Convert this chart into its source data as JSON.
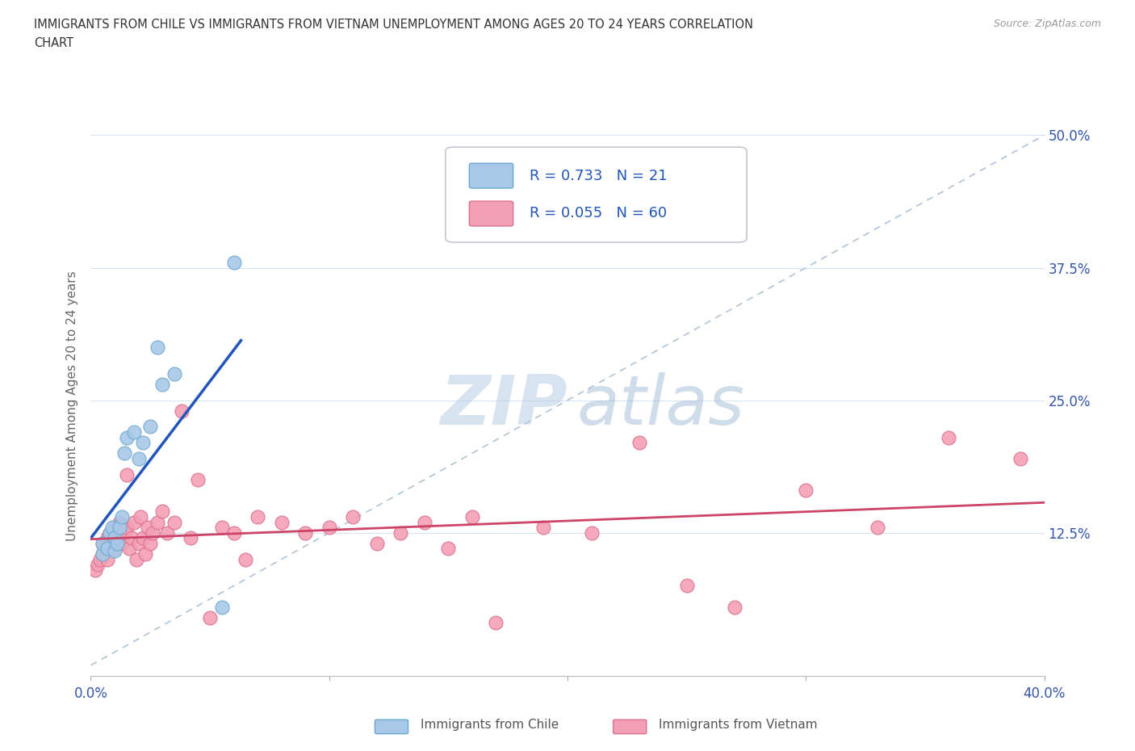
{
  "title": "IMMIGRANTS FROM CHILE VS IMMIGRANTS FROM VIETNAM UNEMPLOYMENT AMONG AGES 20 TO 24 YEARS CORRELATION\nCHART",
  "source": "Source: ZipAtlas.com",
  "ylabel": "Unemployment Among Ages 20 to 24 years",
  "xlim": [
    0.0,
    0.4
  ],
  "ylim": [
    -0.01,
    0.5
  ],
  "xticks": [
    0.0,
    0.1,
    0.2,
    0.3,
    0.4
  ],
  "yticks": [
    0.0,
    0.125,
    0.25,
    0.375,
    0.5
  ],
  "xtick_labels_display": [
    "0.0%",
    "",
    "",
    "",
    "40.0%"
  ],
  "ytick_labels": [
    "",
    "12.5%",
    "25.0%",
    "37.5%",
    "50.0%"
  ],
  "chile_color": "#a8c8e8",
  "chile_edge": "#6aa8d0",
  "vietnam_color": "#f4a0b4",
  "vietnam_edge": "#d87090",
  "chile_line_color": "#2255bb",
  "vietnam_line_color": "#cc4466",
  "diag_line_color": "#b0c4d8",
  "chile_R": 0.733,
  "chile_N": 21,
  "vietnam_R": 0.055,
  "vietnam_N": 60,
  "legend_label_chile": "Immigrants from Chile",
  "legend_label_vietnam": "Immigrants from Vietnam",
  "watermark_zip": "ZIP",
  "watermark_atlas": "atlas",
  "grid_color": "#d8e4f0",
  "chile_x": [
    0.005,
    0.005,
    0.007,
    0.008,
    0.009,
    0.01,
    0.01,
    0.011,
    0.012,
    0.013,
    0.014,
    0.015,
    0.018,
    0.02,
    0.022,
    0.025,
    0.028,
    0.03,
    0.035,
    0.055,
    0.06
  ],
  "chile_y": [
    0.105,
    0.115,
    0.11,
    0.125,
    0.13,
    0.108,
    0.12,
    0.115,
    0.13,
    0.14,
    0.2,
    0.215,
    0.22,
    0.195,
    0.21,
    0.225,
    0.3,
    0.265,
    0.275,
    0.055,
    0.38
  ],
  "vietnam_x": [
    0.002,
    0.003,
    0.004,
    0.005,
    0.005,
    0.006,
    0.007,
    0.007,
    0.008,
    0.009,
    0.01,
    0.01,
    0.011,
    0.012,
    0.013,
    0.014,
    0.015,
    0.015,
    0.016,
    0.017,
    0.018,
    0.019,
    0.02,
    0.021,
    0.022,
    0.023,
    0.024,
    0.025,
    0.026,
    0.028,
    0.03,
    0.032,
    0.035,
    0.038,
    0.042,
    0.045,
    0.05,
    0.055,
    0.06,
    0.065,
    0.07,
    0.08,
    0.09,
    0.1,
    0.11,
    0.12,
    0.13,
    0.14,
    0.15,
    0.16,
    0.17,
    0.19,
    0.21,
    0.23,
    0.25,
    0.27,
    0.3,
    0.33,
    0.36,
    0.39
  ],
  "vietnam_y": [
    0.09,
    0.095,
    0.1,
    0.105,
    0.115,
    0.11,
    0.1,
    0.12,
    0.125,
    0.115,
    0.13,
    0.11,
    0.12,
    0.135,
    0.115,
    0.125,
    0.13,
    0.18,
    0.11,
    0.12,
    0.135,
    0.1,
    0.115,
    0.14,
    0.12,
    0.105,
    0.13,
    0.115,
    0.125,
    0.135,
    0.145,
    0.125,
    0.135,
    0.24,
    0.12,
    0.175,
    0.045,
    0.13,
    0.125,
    0.1,
    0.14,
    0.135,
    0.125,
    0.13,
    0.14,
    0.115,
    0.125,
    0.135,
    0.11,
    0.14,
    0.04,
    0.13,
    0.125,
    0.21,
    0.075,
    0.055,
    0.165,
    0.13,
    0.215,
    0.195
  ]
}
